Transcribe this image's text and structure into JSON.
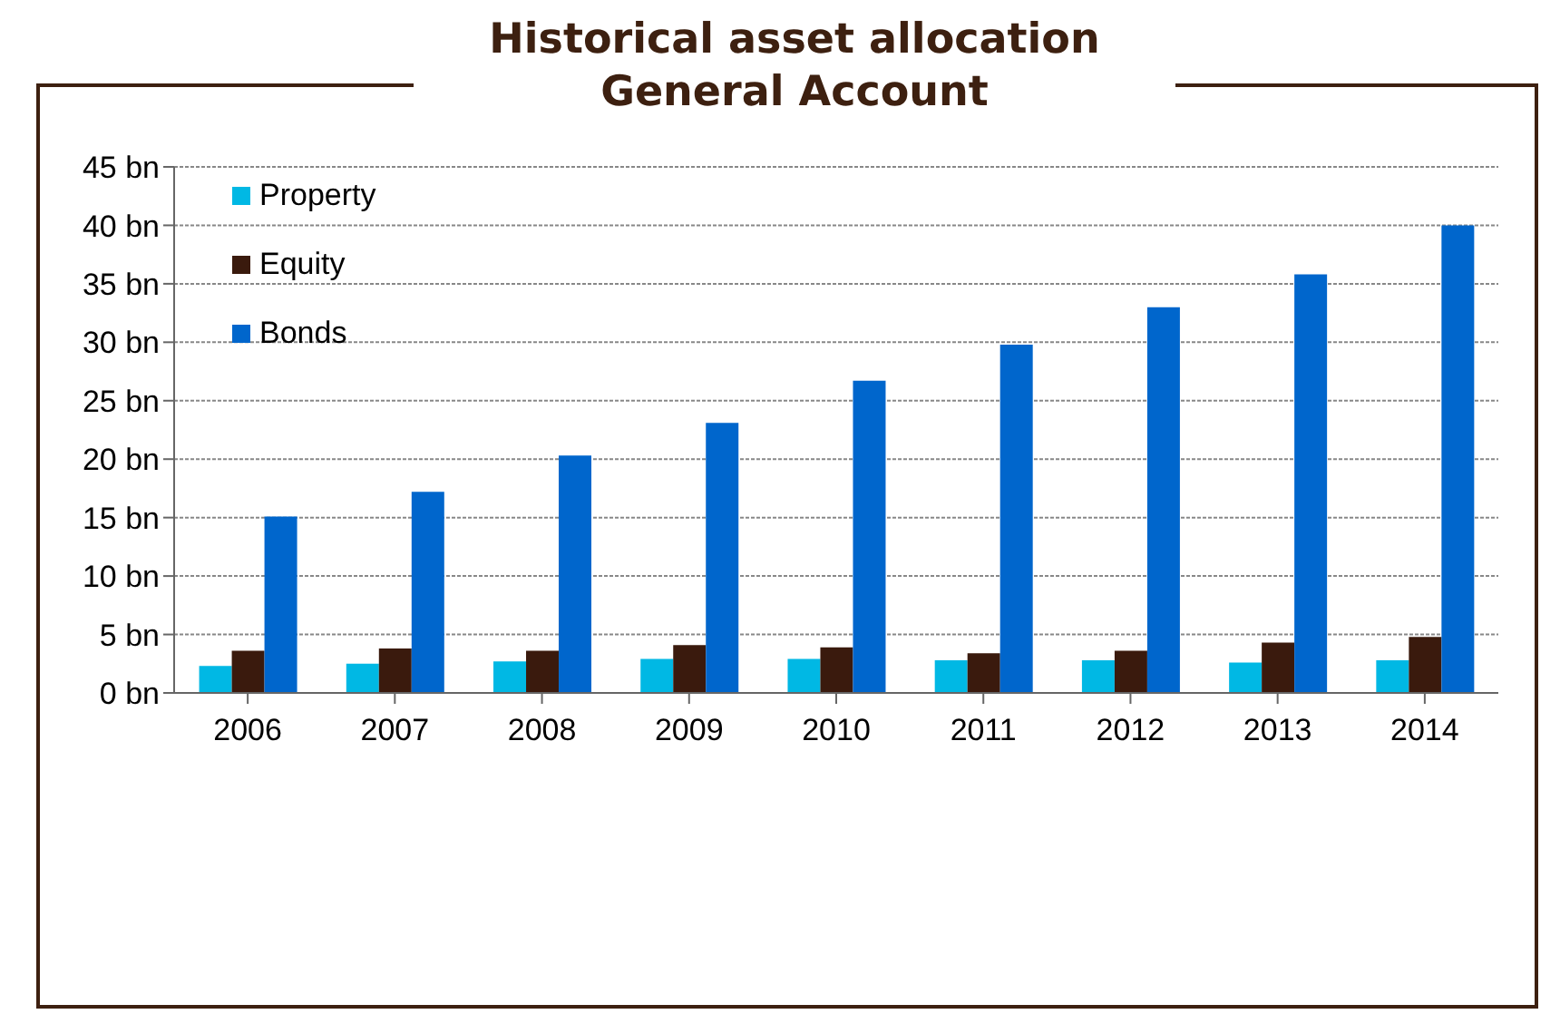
{
  "chart_data": {
    "type": "bar",
    "title": "Historical asset allocation\nGeneral Account",
    "categories": [
      "2006",
      "2007",
      "2008",
      "2009",
      "2010",
      "2011",
      "2012",
      "2013",
      "2014"
    ],
    "series": [
      {
        "name": "Property",
        "color": "#00b8e4",
        "values": [
          2.3,
          2.5,
          2.7,
          2.9,
          2.9,
          2.8,
          2.8,
          2.6,
          2.8
        ]
      },
      {
        "name": "Equity",
        "color": "#3a1a0d",
        "values": [
          3.6,
          3.8,
          3.6,
          4.1,
          3.9,
          3.4,
          3.6,
          4.3,
          4.8
        ]
      },
      {
        "name": "Bonds",
        "color": "#0066cc",
        "values": [
          15.1,
          17.2,
          20.3,
          23.1,
          26.7,
          29.8,
          33.0,
          35.8,
          40.0
        ]
      }
    ],
    "ylim": [
      0,
      45
    ],
    "yticks": [
      {
        "value": 0,
        "label": "0 bn"
      },
      {
        "value": 5,
        "label": "5 bn"
      },
      {
        "value": 10,
        "label": "10 bn"
      },
      {
        "value": 15,
        "label": "15 bn"
      },
      {
        "value": 20,
        "label": "20 bn"
      },
      {
        "value": 25,
        "label": "25 bn"
      },
      {
        "value": 30,
        "label": "30 bn"
      },
      {
        "value": 35,
        "label": "35 bn"
      },
      {
        "value": 40,
        "label": "40 bn"
      },
      {
        "value": 45,
        "label": "45 bn"
      }
    ],
    "grid": "y",
    "legend": "top left"
  }
}
